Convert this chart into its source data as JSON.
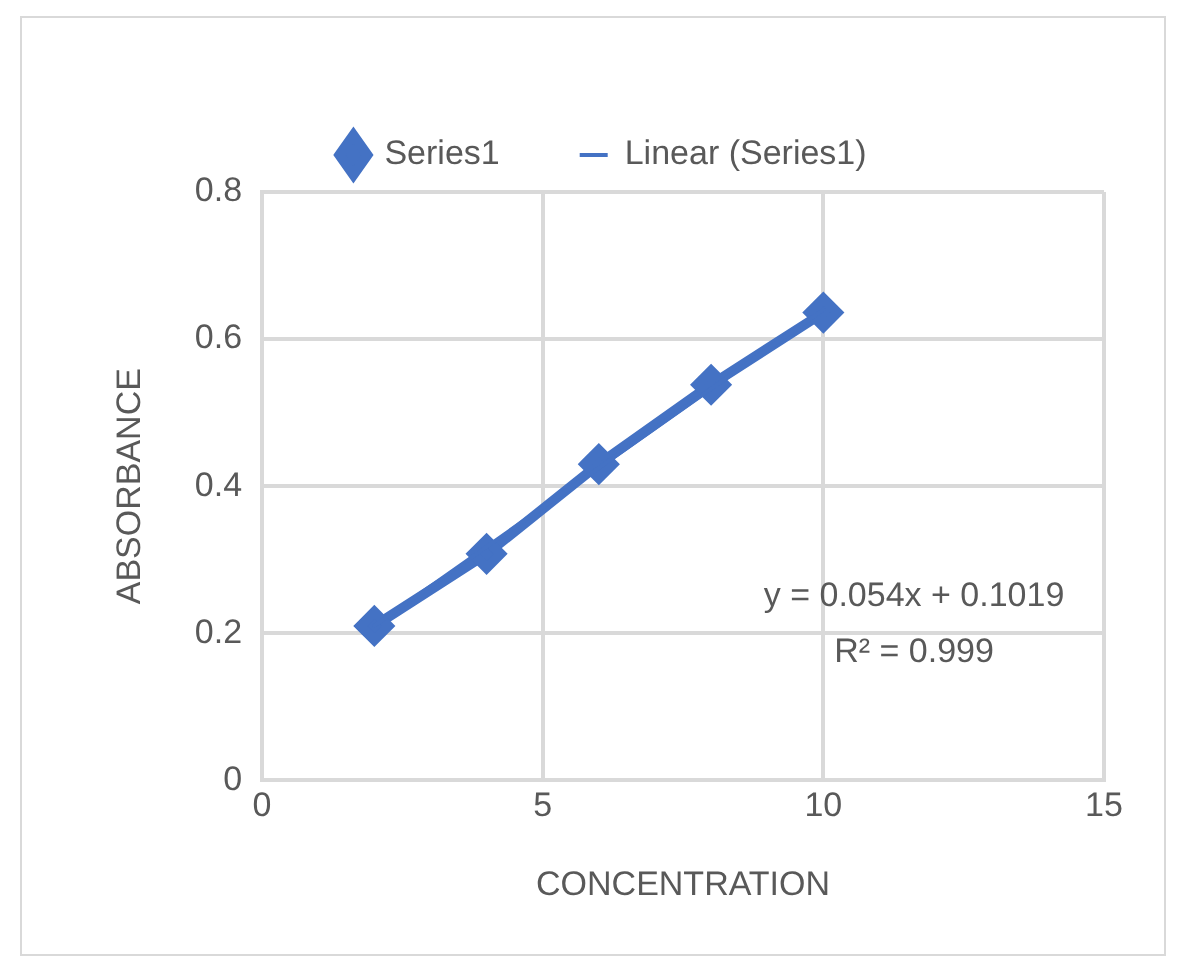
{
  "chart_data": {
    "type": "line",
    "xlabel": "CONCENTRATION",
    "ylabel": "ABSORBANCE",
    "x": [
      2,
      4,
      6,
      8,
      10
    ],
    "series": [
      {
        "name": "Series1",
        "color": "#4472c4",
        "values": [
          0.21,
          0.308,
          0.43,
          0.538,
          0.636
        ],
        "marker": "diamond"
      },
      {
        "name": "Linear (Series1)",
        "type": "line",
        "color": "#4472c4",
        "x": [
          2,
          10
        ],
        "values": [
          0.21,
          0.64
        ],
        "marker": "none"
      }
    ],
    "xlim": [
      0,
      15
    ],
    "xticks": [
      0,
      5,
      10,
      15
    ],
    "ylim": [
      0,
      0.8
    ],
    "yticks": [
      0,
      0.2,
      0.4,
      0.6,
      0.8
    ],
    "grid": true,
    "legend": "top",
    "annotations": [
      "y = 0.054x + 0.1019",
      "R² = 0.999"
    ]
  }
}
